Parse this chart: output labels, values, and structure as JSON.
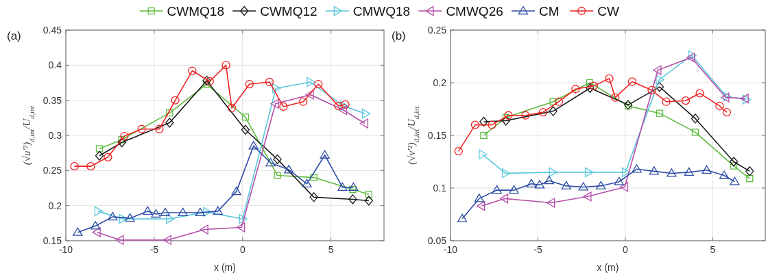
{
  "chart_data": [
    {
      "type": "line",
      "title": "(a)",
      "xlabel": "x (m)",
      "ylabel": "(√u′²)$_{d,int}$/U$_{d,int}$",
      "xlim": [
        -10,
        8
      ],
      "xticks": [
        -10,
        -5,
        0,
        5
      ],
      "ylim": [
        0.15,
        0.45
      ],
      "yticks": [
        0.15,
        0.2,
        0.25,
        0.3,
        0.35,
        0.4,
        0.45
      ],
      "grid": true,
      "legend": "top",
      "series": [
        {
          "name": "CWMQ18",
          "color": "#5dbb3f",
          "marker": "square",
          "x": [
            -8.1,
            -6.83,
            -4.13,
            -2.03,
            0.16,
            1.97,
            4.03,
            6.23,
            7.14
          ],
          "values": [
            0.281,
            0.294,
            0.332,
            0.373,
            0.326,
            0.243,
            0.24,
            0.223,
            0.216
          ]
        },
        {
          "name": "CWMQ12",
          "color": "#1a1a1a",
          "marker": "diamond",
          "x": [
            -8.1,
            -6.83,
            -4.13,
            -2.03,
            0.16,
            1.97,
            4.03,
            6.23,
            7.14
          ],
          "values": [
            0.271,
            0.29,
            0.318,
            0.378,
            0.308,
            0.266,
            0.212,
            0.209,
            0.207
          ]
        },
        {
          "name": "CMWQ18",
          "color": "#5ac8dc",
          "marker": "triangle-right",
          "x": [
            -8.18,
            -6.79,
            -4.13,
            -2.03,
            0,
            1.88,
            3.83,
            5.71,
            6.95
          ],
          "values": [
            0.192,
            0.181,
            0.181,
            0.191,
            0.181,
            0.367,
            0.376,
            0.342,
            0.331
          ]
        },
        {
          "name": "CMWQ26",
          "color": "#b44ea8",
          "marker": "triangle-left",
          "x": [
            -8.23,
            -6.92,
            -4.23,
            -2.14,
            -0.06,
            1.86,
            3.83,
            5.71,
            6.91
          ],
          "values": [
            0.162,
            0.151,
            0.151,
            0.166,
            0.169,
            0.345,
            0.358,
            0.336,
            0.317
          ]
        },
        {
          "name": "CM",
          "color": "#2e4da6",
          "marker": "triangle",
          "x": [
            -9.33,
            -8.33,
            -7.35,
            -6.37,
            -5.37,
            -4.9,
            -4.38,
            -3.38,
            -2.4,
            -1.4,
            -0.35,
            0.62,
            1.58,
            2.62,
            3.64,
            4.65,
            5.65,
            6.27
          ],
          "values": [
            0.162,
            0.171,
            0.184,
            0.182,
            0.192,
            0.188,
            0.19,
            0.19,
            0.19,
            0.192,
            0.22,
            0.285,
            0.261,
            0.251,
            0.231,
            0.272,
            0.226,
            0.226
          ]
        },
        {
          "name": "CW",
          "color": "#ee2222",
          "marker": "circle",
          "x": [
            -9.51,
            -8.59,
            -7.62,
            -6.69,
            -5.71,
            -4.71,
            -3.81,
            -2.85,
            -1.86,
            -0.94,
            -0.61,
            0.39,
            1.52,
            2.31,
            3.43,
            4.29,
            5.42,
            5.81
          ],
          "values": [
            0.256,
            0.256,
            0.269,
            0.299,
            0.309,
            0.309,
            0.35,
            0.392,
            0.377,
            0.4,
            0.339,
            0.373,
            0.376,
            0.341,
            0.348,
            0.373,
            0.342,
            0.344
          ]
        }
      ]
    },
    {
      "type": "line",
      "title": "(b)",
      "xlabel": "x (m)",
      "ylabel": "(√v′²)$_{d,int}$/U$_{d,int}$",
      "xlim": [
        -10,
        8
      ],
      "xticks": [
        -10,
        -5,
        0,
        5
      ],
      "ylim": [
        0.05,
        0.25
      ],
      "yticks": [
        0.05,
        0.1,
        0.15,
        0.2,
        0.25
      ],
      "grid": true,
      "series": [
        {
          "color": "#5dbb3f",
          "marker": "square",
          "x": [
            -8.1,
            -6.83,
            -4.13,
            -2.04,
            0.16,
            1.96,
            4.0,
            6.2,
            7.11
          ],
          "values": [
            0.15,
            0.167,
            0.182,
            0.2,
            0.178,
            0.171,
            0.153,
            0.121,
            0.109
          ]
        },
        {
          "color": "#1a1a1a",
          "marker": "diamond",
          "x": [
            -8.1,
            -6.83,
            -4.13,
            -2.02,
            0.16,
            1.96,
            4.0,
            6.2,
            7.11
          ],
          "values": [
            0.163,
            0.164,
            0.173,
            0.195,
            0.179,
            0.196,
            0.166,
            0.125,
            0.116
          ]
        },
        {
          "color": "#5ac8dc",
          "marker": "triangle-right",
          "x": [
            -8.18,
            -6.86,
            -4.17,
            -2.11,
            0,
            1.94,
            3.8,
            5.78,
            6.9
          ],
          "values": [
            0.132,
            0.114,
            0.115,
            0.115,
            0.115,
            0.203,
            0.226,
            0.187,
            0.184
          ]
        },
        {
          "color": "#b44ea8",
          "marker": "triangle-left",
          "x": [
            -8.23,
            -6.9,
            -4.23,
            -2.14,
            -0.04,
            1.86,
            3.77,
            5.74,
            6.85
          ],
          "values": [
            0.083,
            0.09,
            0.086,
            0.092,
            0.101,
            0.212,
            0.224,
            0.186,
            0.185
          ]
        },
        {
          "color": "#2e4da6",
          "marker": "triangle",
          "x": [
            -9.33,
            -8.36,
            -7.35,
            -6.37,
            -5.37,
            -4.9,
            -4.36,
            -3.38,
            -2.4,
            -1.4,
            -0.36,
            0.65,
            1.64,
            2.64,
            3.64,
            4.65,
            5.65,
            6.25
          ],
          "values": [
            0.071,
            0.09,
            0.098,
            0.098,
            0.104,
            0.103,
            0.107,
            0.102,
            0.101,
            0.102,
            0.106,
            0.118,
            0.116,
            0.114,
            0.115,
            0.117,
            0.112,
            0.106
          ]
        },
        {
          "color": "#ee2222",
          "marker": "circle",
          "x": [
            -9.54,
            -8.59,
            -7.63,
            -6.69,
            -5.71,
            -4.71,
            -3.81,
            -2.85,
            -1.81,
            -0.92,
            -0.58,
            0.39,
            1.51,
            2.33,
            3.45,
            4.26,
            5.39,
            5.8
          ],
          "values": [
            0.135,
            0.16,
            0.16,
            0.169,
            0.169,
            0.172,
            0.182,
            0.194,
            0.197,
            0.204,
            0.186,
            0.201,
            0.193,
            0.182,
            0.183,
            0.19,
            0.178,
            0.172
          ]
        }
      ]
    }
  ]
}
